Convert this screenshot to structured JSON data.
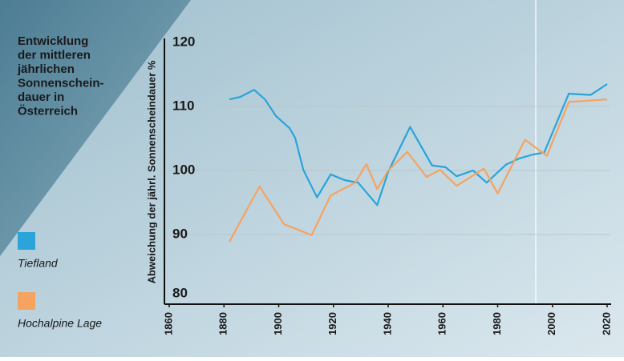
{
  "chart_data": {
    "type": "line",
    "title": [
      "Entwicklung",
      "der mittleren",
      "jährlichen",
      "Sonnenschein-",
      "dauer in",
      "Österreich"
    ],
    "y_label": "Abweichung der jährl. Sonnenscheindauer %",
    "xlim": [
      1860,
      2020
    ],
    "xticks": [
      1860,
      1880,
      1900,
      1920,
      1940,
      1960,
      1980,
      2000,
      2020
    ],
    "ylim": [
      80,
      120
    ],
    "yticks": [
      80,
      90,
      100,
      110,
      120
    ],
    "grid": true,
    "series": [
      {
        "name": "Tiefland",
        "color": "#2ba4d9",
        "x": [
          1882,
          1886,
          1891,
          1895,
          1899,
          1904,
          1906,
          1909,
          1914,
          1919,
          1924,
          1929,
          1936,
          1940,
          1948,
          1956,
          1961,
          1965,
          1971,
          1976,
          1983,
          1988,
          1993,
          1997,
          2006,
          2014,
          2020
        ],
        "values": [
          111.1,
          111.5,
          112.6,
          111.1,
          108.5,
          106.6,
          105.1,
          100.1,
          95.8,
          99.4,
          98.5,
          98.1,
          94.6,
          99.8,
          106.8,
          100.8,
          100.5,
          99.1,
          100,
          98.1,
          100.9,
          101.9,
          102.5,
          102.8,
          112,
          111.8,
          113.5
        ]
      },
      {
        "name": "Hochalpine Lage",
        "color": "#f5a361",
        "x": [
          1882,
          1893,
          1902,
          1912,
          1919,
          1928,
          1932,
          1936,
          1940,
          1947,
          1954,
          1959,
          1965,
          1975,
          1980,
          1990,
          1998,
          2006,
          2013,
          2020
        ],
        "values": [
          88.9,
          97.5,
          91.6,
          89.9,
          96.1,
          98.1,
          101,
          97.1,
          100,
          102.9,
          99,
          100.1,
          97.6,
          100.3,
          96.4,
          104.8,
          102.3,
          110.7,
          110.9,
          111.1
        ]
      }
    ]
  }
}
